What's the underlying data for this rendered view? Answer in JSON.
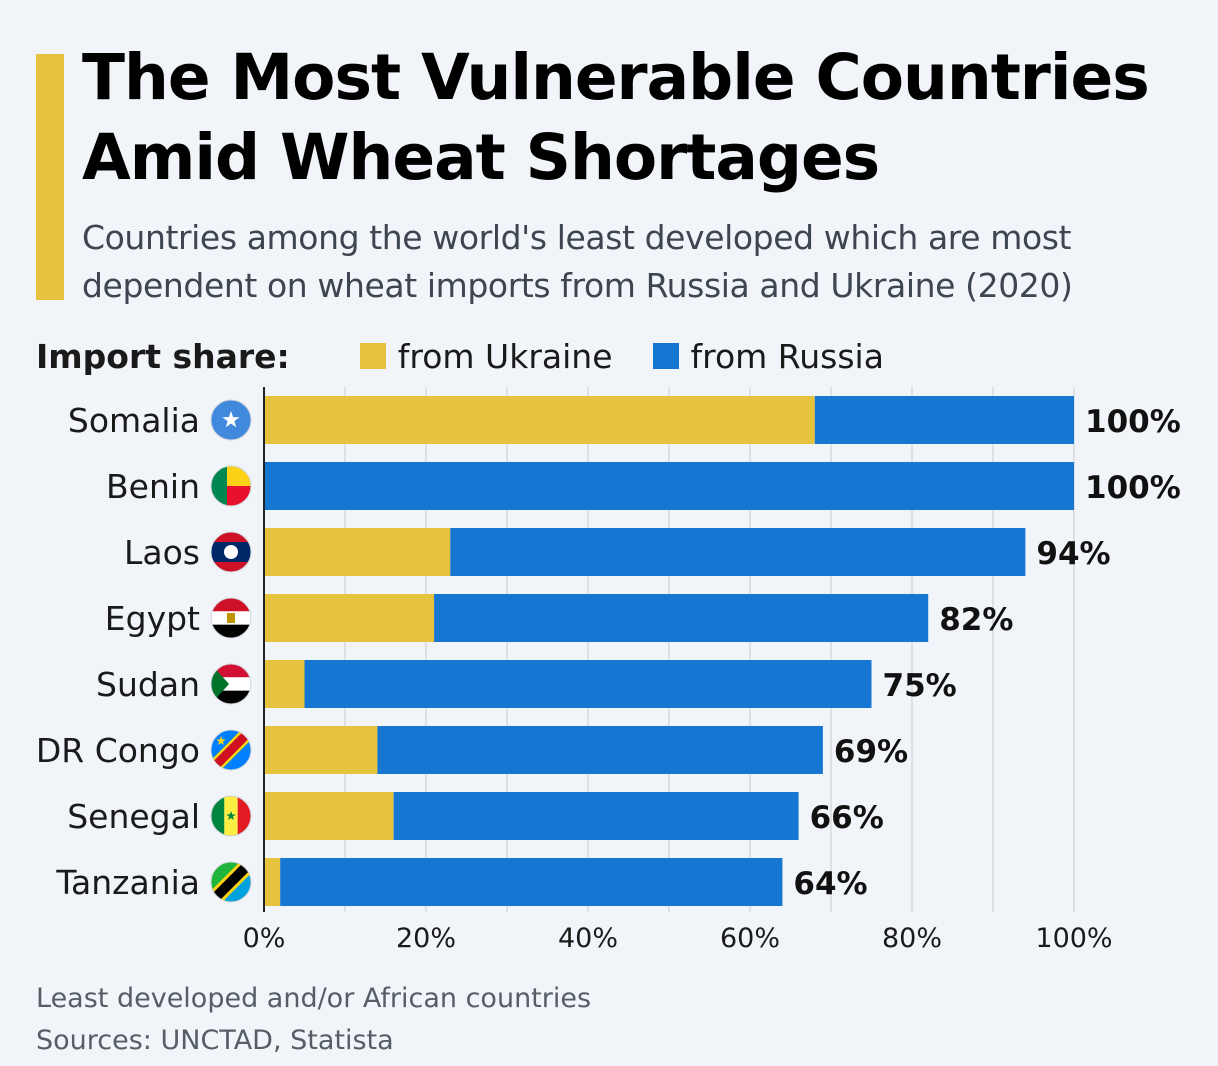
{
  "header": {
    "title": "The Most Vulnerable Countries Amid Wheat Shortages",
    "subtitle": "Countries among the world's least developed which are most dependent on wheat imports from Russia and Ukraine (2020)"
  },
  "legend": {
    "title": "Import share:",
    "items": [
      {
        "label": "from Ukraine",
        "color": "#e6c23f"
      },
      {
        "label": "from Russia",
        "color": "#1677d2"
      }
    ]
  },
  "footer": {
    "note": "Least developed and/or African countries",
    "sources": "Sources: UNCTAD, Statista"
  },
  "chart_data": {
    "type": "bar",
    "orientation": "horizontal",
    "stacked": true,
    "categories": [
      "Somalia",
      "Benin",
      "Laos",
      "Egypt",
      "Sudan",
      "DR Congo",
      "Senegal",
      "Tanzania"
    ],
    "flag_icons": [
      "somalia-flag-icon",
      "benin-flag-icon",
      "laos-flag-icon",
      "egypt-flag-icon",
      "sudan-flag-icon",
      "dr-congo-flag-icon",
      "senegal-flag-icon",
      "tanzania-flag-icon"
    ],
    "series": [
      {
        "name": "from Ukraine",
        "color": "#e6c23f",
        "values": [
          68,
          0,
          23,
          21,
          5,
          14,
          16,
          2
        ]
      },
      {
        "name": "from Russia",
        "color": "#1677d2",
        "values": [
          32,
          100,
          71,
          61,
          70,
          55,
          50,
          62
        ]
      }
    ],
    "totals": [
      100,
      100,
      94,
      82,
      75,
      69,
      66,
      64
    ],
    "total_labels": [
      "100%",
      "100%",
      "94%",
      "82%",
      "75%",
      "69%",
      "66%",
      "64%"
    ],
    "xlim": [
      0,
      100
    ],
    "xticks": [
      0,
      20,
      40,
      60,
      80,
      100
    ],
    "xtick_labels": [
      "0%",
      "20%",
      "40%",
      "60%",
      "80%",
      "100%"
    ],
    "grid": true,
    "legend_position": "top-left"
  }
}
